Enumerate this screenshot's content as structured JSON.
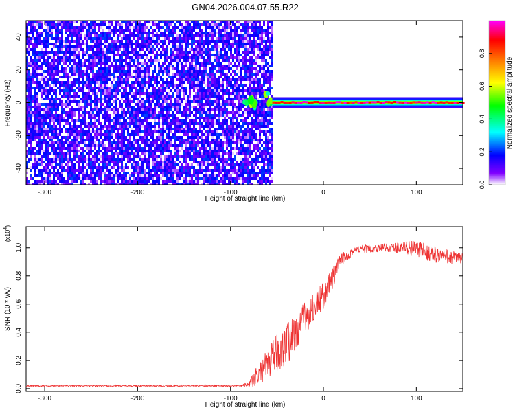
{
  "title": "GN04.2026.004.07.55.R22",
  "chart_data": [
    {
      "type": "heatmap",
      "title": "GN04.2026.004.07.55.R22",
      "xlabel": "Height of straight line (km)",
      "ylabel": "Frequency (Hz)",
      "xlim": [
        -320,
        150
      ],
      "ylim": [
        -50,
        50
      ],
      "x_ticks": [
        -300,
        -200,
        -100,
        0,
        100
      ],
      "x_tick_labels": [
        "-300",
        "-200",
        "-100",
        "0",
        "100"
      ],
      "y_ticks": [
        -40,
        -20,
        0,
        20,
        40
      ],
      "y_tick_labels": [
        "-40",
        "-20",
        "0",
        "20",
        "40"
      ],
      "regions": [
        {
          "x_range": [
            -320,
            -55
          ],
          "y_range": [
            -50,
            50
          ],
          "amplitude": [
            0.0,
            0.22
          ],
          "pattern": "noise"
        },
        {
          "x_range": [
            -85,
            -55
          ],
          "y_range": [
            -3,
            6
          ],
          "amplitude": [
            0.3,
            0.6
          ],
          "pattern": "onset blobs"
        },
        {
          "x_range": [
            -55,
            150
          ],
          "y_range": [
            -3,
            3
          ],
          "amplitude": [
            0.8,
            1.0
          ],
          "pattern": "narrow carrier line"
        }
      ],
      "colorbar": {
        "label": "Normalized spectral amplitude",
        "range": [
          0,
          1
        ],
        "ticks": [
          0.0,
          0.2,
          0.4,
          0.6,
          0.8
        ],
        "tick_labels": [
          "0.0",
          "0.2",
          "0.4",
          "0.6",
          "0.8"
        ],
        "colors": [
          "#ffffff",
          "#8000ff",
          "#0000ff",
          "#00ffff",
          "#00ff00",
          "#ffff00",
          "#ff8000",
          "#ff0000",
          "#ff00ff"
        ]
      }
    },
    {
      "type": "line",
      "xlabel": "Height of straight line (km)",
      "ylabel": "SNR (10 * v/v)",
      "y_multiplier": "(x10",
      "y_multiplier_exp": "4",
      "xlim": [
        -320,
        150
      ],
      "ylim": [
        -0.02,
        1.15
      ],
      "x_ticks": [
        -300,
        -200,
        -100,
        0,
        100
      ],
      "x_tick_labels": [
        "-300",
        "-200",
        "-100",
        "0",
        "100"
      ],
      "y_ticks": [
        0.0,
        0.2,
        0.4,
        0.6,
        0.8,
        1.0
      ],
      "y_tick_labels": [
        "0.0",
        "0.2",
        "0.4",
        "0.6",
        "0.8",
        "1.0"
      ],
      "color": "#ee3333",
      "x": [
        -320,
        -250,
        -150,
        -90,
        -80,
        -70,
        -60,
        -50,
        -45,
        -40,
        -30,
        -20,
        -10,
        0,
        10,
        15,
        20,
        30,
        40,
        50,
        60,
        70,
        80,
        90,
        100,
        110,
        120,
        130,
        140,
        150
      ],
      "y": [
        0.02,
        0.02,
        0.02,
        0.02,
        0.03,
        0.1,
        0.18,
        0.25,
        0.28,
        0.32,
        0.4,
        0.5,
        0.58,
        0.66,
        0.78,
        0.86,
        0.92,
        0.97,
        0.99,
        0.99,
        1.0,
        1.0,
        1.0,
        1.0,
        0.99,
        0.97,
        0.95,
        0.94,
        0.93,
        0.92
      ],
      "noise": [
        0.005,
        0.005,
        0.005,
        0.005,
        0.02,
        0.08,
        0.1,
        0.14,
        0.15,
        0.15,
        0.14,
        0.12,
        0.1,
        0.1,
        0.08,
        0.06,
        0.05,
        0.04,
        0.03,
        0.03,
        0.03,
        0.03,
        0.04,
        0.05,
        0.06,
        0.06,
        0.06,
        0.05,
        0.05,
        0.05
      ]
    }
  ]
}
